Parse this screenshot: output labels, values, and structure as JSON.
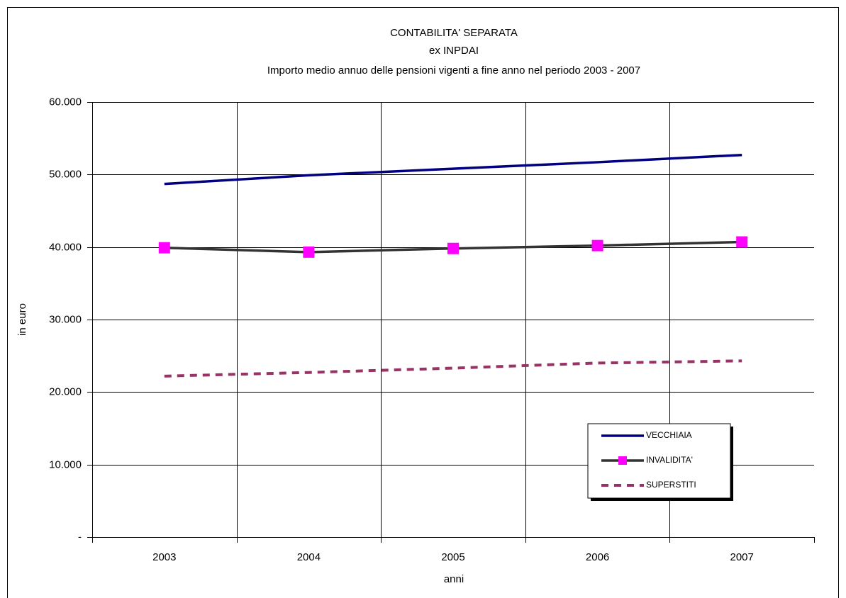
{
  "chart_data": {
    "type": "line",
    "title": [
      "CONTABILITA' SEPARATA",
      "ex INPDAI",
      "Importo medio annuo delle pensioni vigenti a fine anno nel periodo 2003 - 2007"
    ],
    "x_label": "anni",
    "y_label": "in euro",
    "categories": [
      "2003",
      "2004",
      "2005",
      "2006",
      "2007"
    ],
    "series": [
      {
        "name": "VECCHIAIA",
        "color": "#000080",
        "style": "solid",
        "values": [
          48700,
          49900,
          50800,
          51700,
          52700
        ]
      },
      {
        "name": "INVALIDITA'",
        "color": "#333333",
        "style": "solid",
        "marker": "square",
        "marker_color": "#ff00ff",
        "values": [
          39900,
          39300,
          39800,
          40200,
          40700
        ]
      },
      {
        "name": "SUPERSTITI",
        "color": "#993366",
        "style": "dashed",
        "values": [
          22200,
          22700,
          23300,
          24000,
          24300
        ]
      }
    ],
    "ylim": [
      0,
      60000
    ],
    "yticks": [
      {
        "value": 0,
        "label": "-"
      },
      {
        "value": 10000,
        "label": "10.000"
      },
      {
        "value": 20000,
        "label": "20.000"
      },
      {
        "value": 30000,
        "label": "30.000"
      },
      {
        "value": 40000,
        "label": "40.000"
      },
      {
        "value": 50000,
        "label": "50.000"
      },
      {
        "value": 60000,
        "label": "60.000"
      }
    ],
    "grid": true,
    "legend": "lower-right"
  }
}
